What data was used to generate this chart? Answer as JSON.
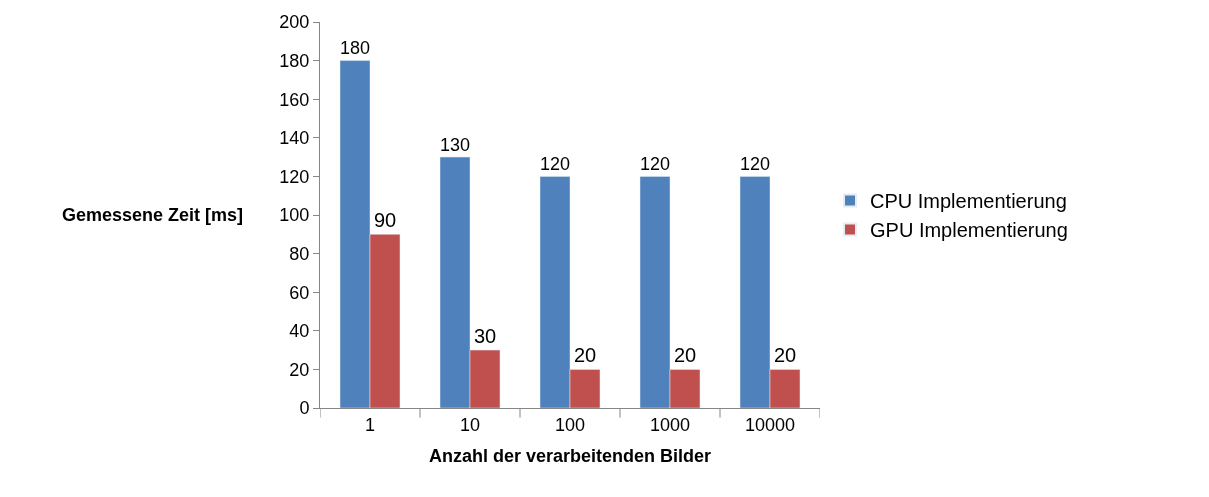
{
  "chart_data": {
    "type": "bar",
    "xlabel": "Anzahl der verarbeitenden Bilder",
    "ylabel": "Gemessene Zeit [ms]",
    "categories": [
      "1",
      "10",
      "100",
      "1000",
      "10000"
    ],
    "series": [
      {
        "name": "CPU Implementierung",
        "color": "#4f81bd",
        "values": [
          180,
          130,
          120,
          120,
          120
        ]
      },
      {
        "name": "GPU Implementierung",
        "color": "#c0504d",
        "values": [
          90,
          30,
          20,
          20,
          20
        ]
      }
    ],
    "ylim": [
      0,
      200
    ],
    "yticks": [
      0,
      20,
      40,
      60,
      80,
      100,
      120,
      140,
      160,
      180,
      200
    ],
    "data_labels": true,
    "legend": "right"
  }
}
